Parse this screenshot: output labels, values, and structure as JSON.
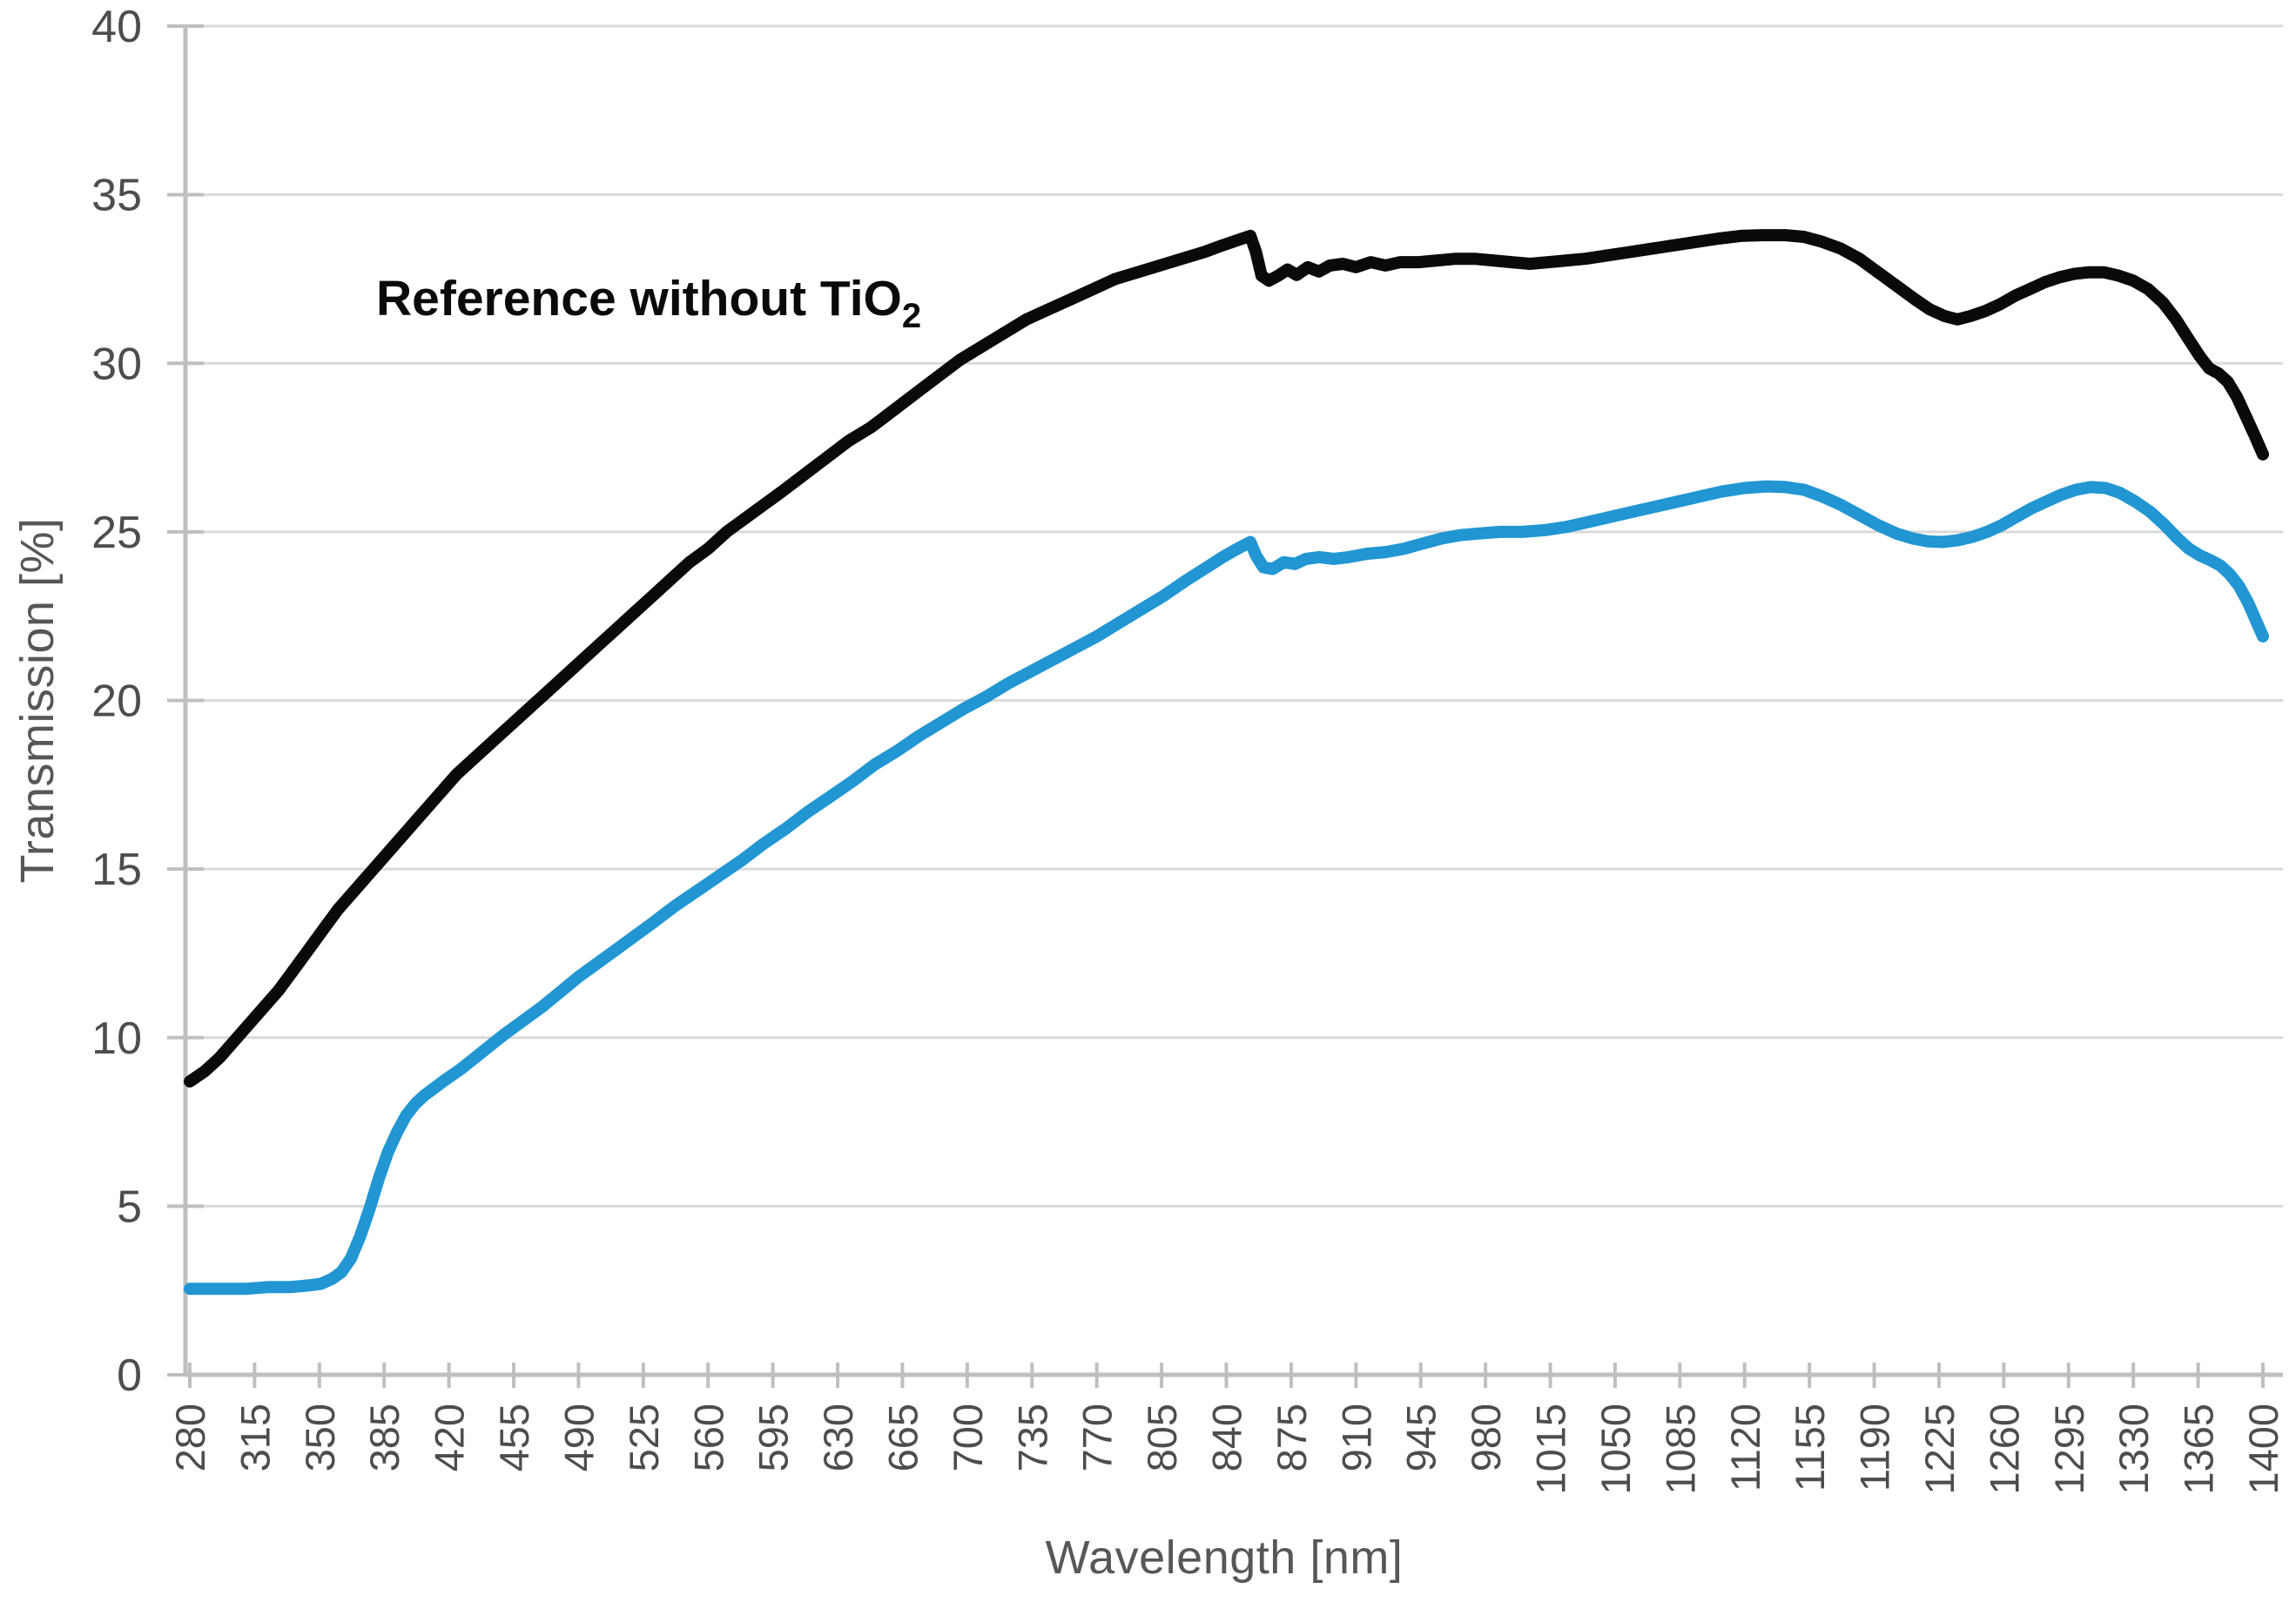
{
  "chart_data": {
    "type": "line",
    "title": "",
    "xlabel": "Wavelength [nm]",
    "ylabel": "Transmission [%]",
    "xlim": [
      280,
      1400
    ],
    "ylim": [
      0,
      40
    ],
    "grid": "horizontal",
    "legend_position": "none",
    "annotation": {
      "text": "Reference without TiO",
      "subscript": "2"
    },
    "x_ticks": [
      280,
      315,
      350,
      385,
      420,
      455,
      490,
      525,
      560,
      595,
      630,
      665,
      700,
      735,
      770,
      805,
      840,
      875,
      910,
      945,
      980,
      1015,
      1050,
      1085,
      1120,
      1155,
      1190,
      1225,
      1260,
      1295,
      1330,
      1365,
      1400
    ],
    "y_ticks": [
      0,
      5,
      10,
      15,
      20,
      25,
      30,
      35,
      40
    ],
    "colors": {
      "gridline": "#d9d9d9",
      "axis": "#bfbfbf",
      "tick_label": "#4d4d4d",
      "reference_series": "#0a0a0a",
      "blue_series": "#2196d3"
    },
    "series": [
      {
        "id": "reference-without-TiO2",
        "label": "Reference without TiO2",
        "color": "#0a0a0a",
        "stroke_width": 14,
        "points": [
          [
            280,
            8.7
          ],
          [
            288,
            9.0
          ],
          [
            296,
            9.4
          ],
          [
            304,
            9.9
          ],
          [
            312,
            10.4
          ],
          [
            320,
            10.9
          ],
          [
            328,
            11.4
          ],
          [
            336,
            12.0
          ],
          [
            344,
            12.6
          ],
          [
            352,
            13.2
          ],
          [
            360,
            13.8
          ],
          [
            368,
            14.3
          ],
          [
            376,
            14.8
          ],
          [
            384,
            15.3
          ],
          [
            392,
            15.8
          ],
          [
            400,
            16.3
          ],
          [
            408,
            16.8
          ],
          [
            416,
            17.3
          ],
          [
            424,
            17.8
          ],
          [
            432,
            18.2
          ],
          [
            440,
            18.6
          ],
          [
            448,
            19.0
          ],
          [
            456,
            19.4
          ],
          [
            464,
            19.8
          ],
          [
            472,
            20.2
          ],
          [
            480,
            20.6
          ],
          [
            490,
            21.1
          ],
          [
            500,
            21.6
          ],
          [
            510,
            22.1
          ],
          [
            520,
            22.6
          ],
          [
            530,
            23.1
          ],
          [
            540,
            23.6
          ],
          [
            550,
            24.1
          ],
          [
            560,
            24.5
          ],
          [
            570,
            25.0
          ],
          [
            580,
            25.4
          ],
          [
            590,
            25.8
          ],
          [
            600,
            26.2
          ],
          [
            612,
            26.7
          ],
          [
            624,
            27.2
          ],
          [
            636,
            27.7
          ],
          [
            648,
            28.1
          ],
          [
            660,
            28.6
          ],
          [
            672,
            29.1
          ],
          [
            684,
            29.6
          ],
          [
            696,
            30.1
          ],
          [
            708,
            30.5
          ],
          [
            720,
            30.9
          ],
          [
            732,
            31.3
          ],
          [
            744,
            31.6
          ],
          [
            756,
            31.9
          ],
          [
            768,
            32.2
          ],
          [
            780,
            32.5
          ],
          [
            792,
            32.7
          ],
          [
            804,
            32.9
          ],
          [
            816,
            33.1
          ],
          [
            828,
            33.3
          ],
          [
            838,
            33.5
          ],
          [
            846,
            33.65
          ],
          [
            853,
            33.78
          ],
          [
            856,
            33.3
          ],
          [
            859,
            32.6
          ],
          [
            863,
            32.45
          ],
          [
            868,
            32.6
          ],
          [
            873,
            32.78
          ],
          [
            878,
            32.62
          ],
          [
            884,
            32.85
          ],
          [
            890,
            32.72
          ],
          [
            896,
            32.9
          ],
          [
            903,
            32.95
          ],
          [
            910,
            32.85
          ],
          [
            918,
            33.0
          ],
          [
            926,
            32.9
          ],
          [
            934,
            33.0
          ],
          [
            944,
            33.0
          ],
          [
            954,
            33.05
          ],
          [
            964,
            33.1
          ],
          [
            974,
            33.1
          ],
          [
            984,
            33.05
          ],
          [
            994,
            33.0
          ],
          [
            1004,
            32.95
          ],
          [
            1014,
            33.0
          ],
          [
            1024,
            33.05
          ],
          [
            1034,
            33.1
          ],
          [
            1046,
            33.2
          ],
          [
            1058,
            33.3
          ],
          [
            1070,
            33.4
          ],
          [
            1082,
            33.5
          ],
          [
            1094,
            33.6
          ],
          [
            1106,
            33.7
          ],
          [
            1118,
            33.78
          ],
          [
            1130,
            33.8
          ],
          [
            1142,
            33.8
          ],
          [
            1152,
            33.75
          ],
          [
            1162,
            33.6
          ],
          [
            1172,
            33.4
          ],
          [
            1182,
            33.1
          ],
          [
            1192,
            32.7
          ],
          [
            1202,
            32.3
          ],
          [
            1212,
            31.9
          ],
          [
            1220,
            31.6
          ],
          [
            1228,
            31.4
          ],
          [
            1235,
            31.3
          ],
          [
            1242,
            31.4
          ],
          [
            1250,
            31.55
          ],
          [
            1258,
            31.75
          ],
          [
            1266,
            32.0
          ],
          [
            1274,
            32.2
          ],
          [
            1282,
            32.4
          ],
          [
            1290,
            32.55
          ],
          [
            1298,
            32.65
          ],
          [
            1306,
            32.7
          ],
          [
            1314,
            32.7
          ],
          [
            1322,
            32.6
          ],
          [
            1330,
            32.45
          ],
          [
            1338,
            32.2
          ],
          [
            1346,
            31.8
          ],
          [
            1353,
            31.3
          ],
          [
            1360,
            30.7
          ],
          [
            1366,
            30.2
          ],
          [
            1371,
            29.85
          ],
          [
            1376,
            29.7
          ],
          [
            1381,
            29.45
          ],
          [
            1386,
            29.0
          ],
          [
            1391,
            28.4
          ],
          [
            1396,
            27.8
          ],
          [
            1400,
            27.3
          ]
        ]
      },
      {
        "id": "blue-coated-sample",
        "label": "",
        "color": "#2196d3",
        "stroke_width": 14,
        "points": [
          [
            280,
            2.55
          ],
          [
            295,
            2.55
          ],
          [
            310,
            2.55
          ],
          [
            322,
            2.6
          ],
          [
            334,
            2.6
          ],
          [
            344,
            2.65
          ],
          [
            351,
            2.7
          ],
          [
            357,
            2.85
          ],
          [
            362,
            3.05
          ],
          [
            367,
            3.45
          ],
          [
            372,
            4.1
          ],
          [
            377,
            4.9
          ],
          [
            382,
            5.8
          ],
          [
            387,
            6.6
          ],
          [
            392,
            7.2
          ],
          [
            397,
            7.7
          ],
          [
            402,
            8.05
          ],
          [
            407,
            8.3
          ],
          [
            412,
            8.5
          ],
          [
            418,
            8.75
          ],
          [
            426,
            9.05
          ],
          [
            434,
            9.4
          ],
          [
            442,
            9.75
          ],
          [
            450,
            10.1
          ],
          [
            460,
            10.5
          ],
          [
            470,
            10.9
          ],
          [
            480,
            11.35
          ],
          [
            490,
            11.8
          ],
          [
            500,
            12.2
          ],
          [
            510,
            12.6
          ],
          [
            520,
            13.0
          ],
          [
            530,
            13.4
          ],
          [
            542,
            13.9
          ],
          [
            554,
            14.35
          ],
          [
            566,
            14.8
          ],
          [
            578,
            15.25
          ],
          [
            590,
            15.75
          ],
          [
            602,
            16.2
          ],
          [
            614,
            16.7
          ],
          [
            626,
            17.15
          ],
          [
            638,
            17.6
          ],
          [
            650,
            18.1
          ],
          [
            662,
            18.5
          ],
          [
            674,
            18.95
          ],
          [
            686,
            19.35
          ],
          [
            698,
            19.75
          ],
          [
            710,
            20.1
          ],
          [
            722,
            20.5
          ],
          [
            734,
            20.85
          ],
          [
            746,
            21.2
          ],
          [
            758,
            21.55
          ],
          [
            770,
            21.9
          ],
          [
            782,
            22.3
          ],
          [
            794,
            22.7
          ],
          [
            806,
            23.1
          ],
          [
            818,
            23.55
          ],
          [
            828,
            23.9
          ],
          [
            838,
            24.25
          ],
          [
            846,
            24.5
          ],
          [
            853,
            24.7
          ],
          [
            856,
            24.3
          ],
          [
            860,
            23.95
          ],
          [
            865,
            23.9
          ],
          [
            871,
            24.1
          ],
          [
            877,
            24.05
          ],
          [
            883,
            24.2
          ],
          [
            890,
            24.25
          ],
          [
            898,
            24.2
          ],
          [
            906,
            24.25
          ],
          [
            916,
            24.35
          ],
          [
            926,
            24.4
          ],
          [
            936,
            24.5
          ],
          [
            946,
            24.65
          ],
          [
            956,
            24.8
          ],
          [
            966,
            24.9
          ],
          [
            976,
            24.95
          ],
          [
            988,
            25.0
          ],
          [
            1000,
            25.0
          ],
          [
            1012,
            25.05
          ],
          [
            1024,
            25.15
          ],
          [
            1036,
            25.3
          ],
          [
            1048,
            25.45
          ],
          [
            1060,
            25.6
          ],
          [
            1072,
            25.75
          ],
          [
            1084,
            25.9
          ],
          [
            1096,
            26.05
          ],
          [
            1108,
            26.2
          ],
          [
            1120,
            26.3
          ],
          [
            1132,
            26.35
          ],
          [
            1142,
            26.33
          ],
          [
            1152,
            26.25
          ],
          [
            1162,
            26.05
          ],
          [
            1172,
            25.8
          ],
          [
            1182,
            25.5
          ],
          [
            1192,
            25.2
          ],
          [
            1202,
            24.95
          ],
          [
            1211,
            24.8
          ],
          [
            1219,
            24.72
          ],
          [
            1227,
            24.7
          ],
          [
            1235,
            24.75
          ],
          [
            1243,
            24.85
          ],
          [
            1251,
            25.0
          ],
          [
            1259,
            25.2
          ],
          [
            1267,
            25.45
          ],
          [
            1275,
            25.7
          ],
          [
            1283,
            25.9
          ],
          [
            1291,
            26.1
          ],
          [
            1299,
            26.25
          ],
          [
            1307,
            26.33
          ],
          [
            1315,
            26.3
          ],
          [
            1323,
            26.15
          ],
          [
            1331,
            25.9
          ],
          [
            1339,
            25.6
          ],
          [
            1347,
            25.2
          ],
          [
            1354,
            24.8
          ],
          [
            1360,
            24.5
          ],
          [
            1366,
            24.3
          ],
          [
            1372,
            24.15
          ],
          [
            1377,
            24.0
          ],
          [
            1382,
            23.75
          ],
          [
            1387,
            23.4
          ],
          [
            1392,
            22.9
          ],
          [
            1396,
            22.4
          ],
          [
            1400,
            21.9
          ]
        ]
      }
    ]
  }
}
